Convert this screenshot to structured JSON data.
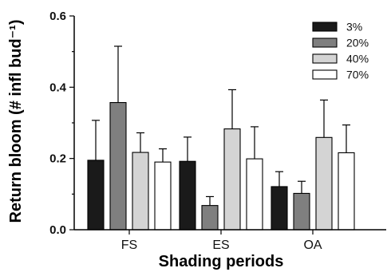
{
  "chart_data": {
    "type": "bar",
    "title": "",
    "xlabel": "Shading periods",
    "ylabel": "Return bloom (# infl bud⁻¹)",
    "ylim": [
      0,
      0.6
    ],
    "yticks": [
      "0.0",
      "0.2",
      "0.4",
      "0.6"
    ],
    "categories": [
      "FS",
      "ES",
      "OA"
    ],
    "legend_position": "top-right",
    "series": [
      {
        "name": "3%",
        "color": "#1a1a1a",
        "values": [
          0.195,
          0.192,
          0.121
        ],
        "errors": [
          0.112,
          0.068,
          0.042
        ]
      },
      {
        "name": "20%",
        "color": "#7f7f7f",
        "values": [
          0.357,
          0.068,
          0.102
        ],
        "errors": [
          0.158,
          0.025,
          0.034
        ]
      },
      {
        "name": "40%",
        "color": "#d4d4d4",
        "values": [
          0.217,
          0.283,
          0.259
        ],
        "errors": [
          0.055,
          0.11,
          0.105
        ]
      },
      {
        "name": "70%",
        "color": "#ffffff",
        "values": [
          0.19,
          0.199,
          0.216
        ],
        "errors": [
          0.037,
          0.09,
          0.078
        ]
      }
    ]
  }
}
